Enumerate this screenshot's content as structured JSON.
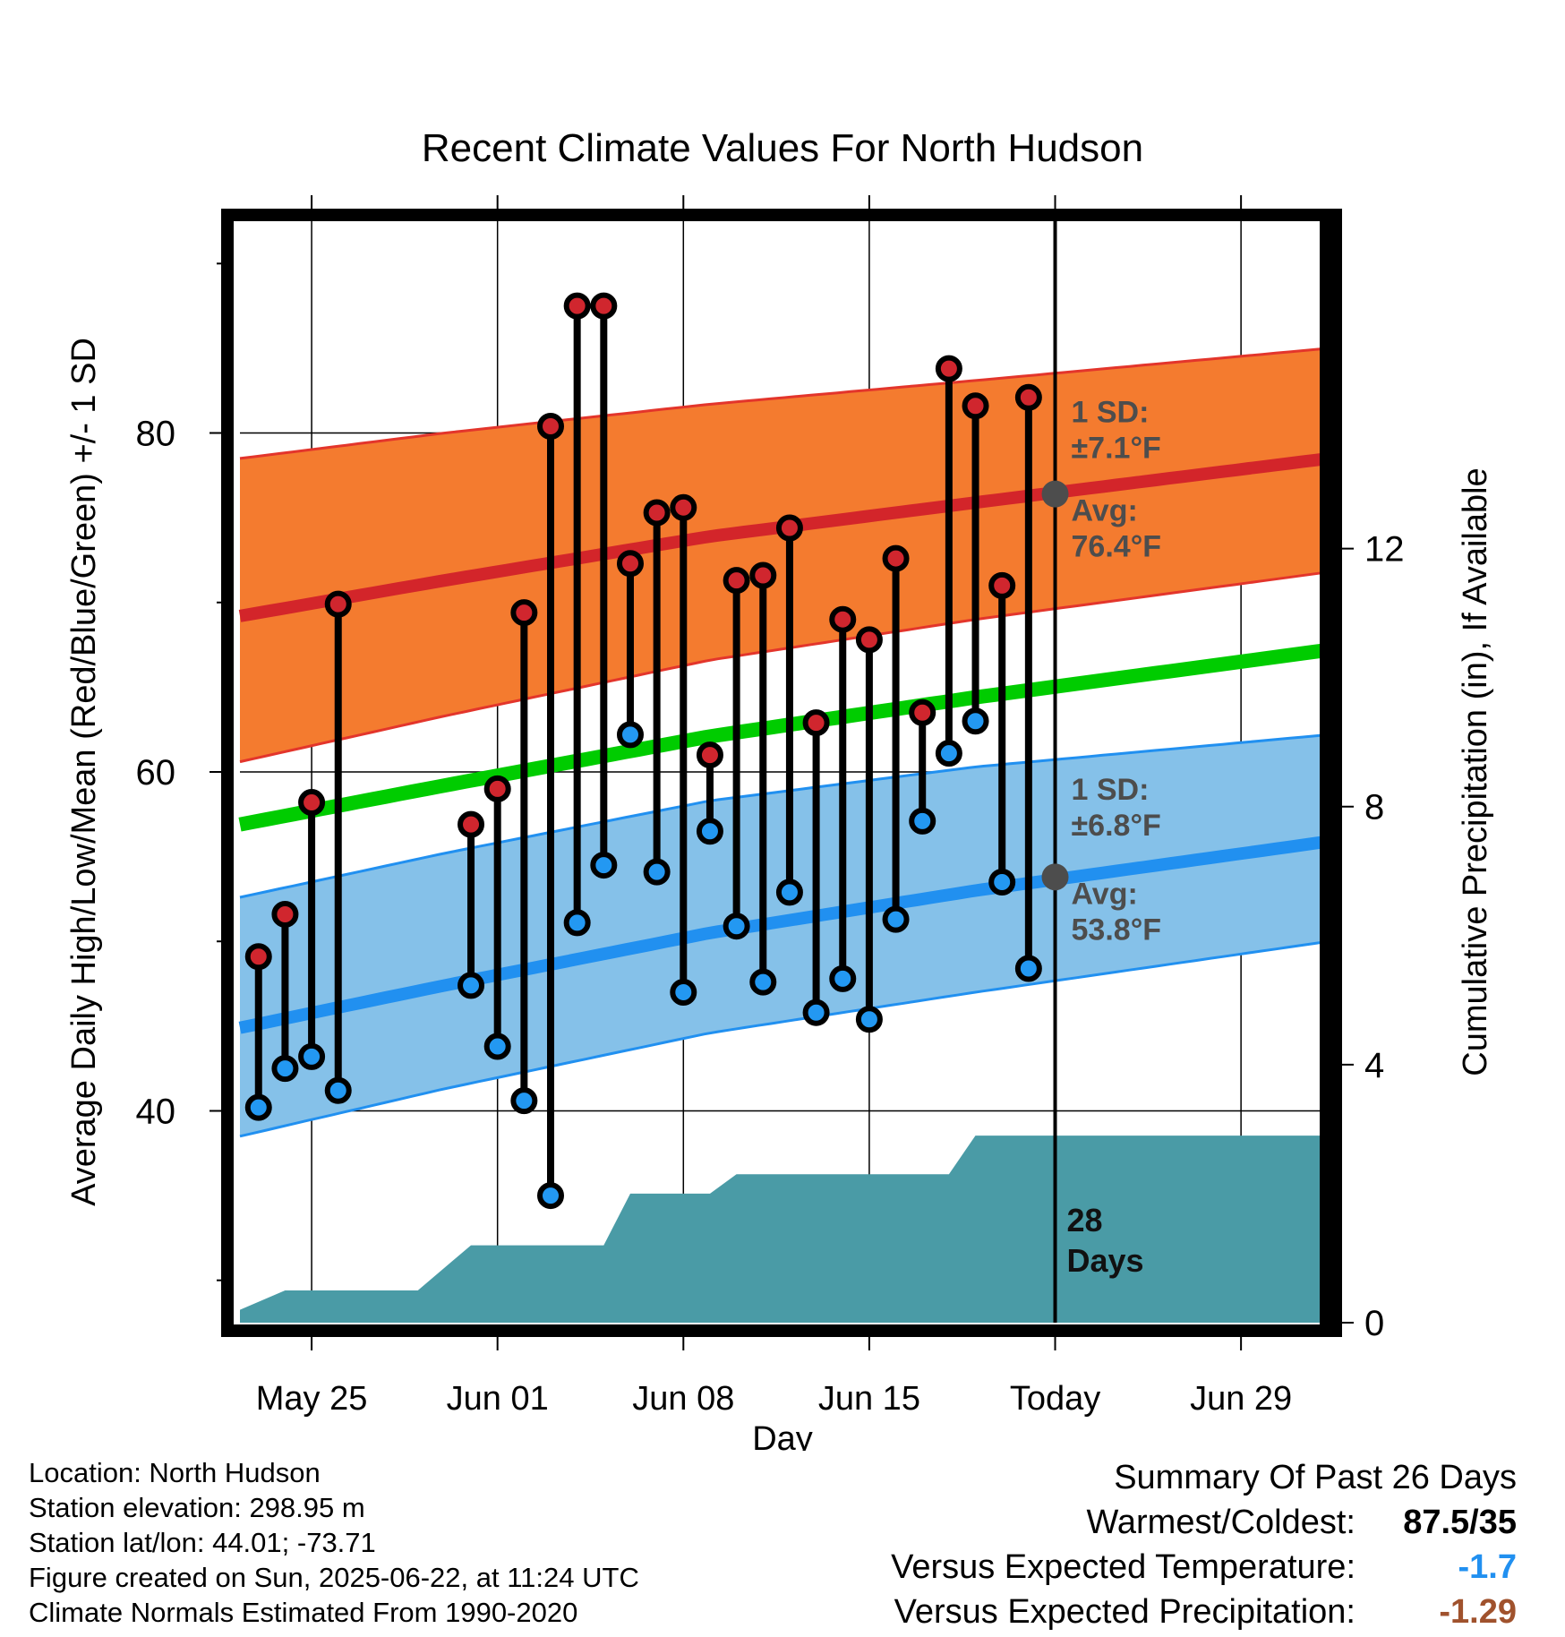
{
  "chart_data": {
    "type": "line",
    "title": "Recent Climate Values For North Hudson",
    "xlabel": "Day",
    "ylabel_left": "Average Daily High/Low/Mean (Red/Blue/Green) +/- 1 SD",
    "ylabel_right": "Cumulative Precipitation (in), If Available",
    "x_ticks": [
      {
        "day": 25,
        "label": "May 25"
      },
      {
        "day": 32,
        "label": "Jun 01"
      },
      {
        "day": 39,
        "label": "Jun 08"
      },
      {
        "day": 46,
        "label": "Jun 15"
      },
      {
        "day": 53,
        "label": "Today"
      },
      {
        "day": 60,
        "label": "Jun 29"
      }
    ],
    "x_range": [
      22.3,
      63.3
    ],
    "y_left_range": [
      27.5,
      92.5
    ],
    "y_left_ticks": [
      40,
      60,
      80
    ],
    "y_left_minor_ticks": [
      30,
      50,
      70,
      90
    ],
    "y_right_ticks": [
      0,
      4,
      8,
      12
    ],
    "y_right_per_degree": 0.2627,
    "today_day": 53,
    "normals": {
      "days": [
        22.3,
        30,
        40,
        50,
        63.3
      ],
      "high_mean": [
        69.2,
        71.3,
        73.9,
        75.9,
        78.5
      ],
      "high_plus_sd": [
        78.5,
        80.0,
        81.7,
        83.1,
        85.0
      ],
      "high_minus_sd": [
        60.6,
        63.3,
        66.6,
        69.0,
        71.8
      ],
      "mean": [
        56.9,
        59.2,
        62.1,
        64.4,
        67.2
      ],
      "low_mean": [
        44.9,
        47.4,
        50.5,
        53.0,
        55.9
      ],
      "low_plus_sd": [
        52.6,
        55.2,
        58.3,
        60.3,
        62.2
      ],
      "low_minus_sd": [
        38.5,
        41.3,
        44.6,
        47.0,
        50.0
      ]
    },
    "daily": [
      {
        "day": 23,
        "high": 49.1,
        "low": 40.2
      },
      {
        "day": 24,
        "high": 51.6,
        "low": 42.5
      },
      {
        "day": 25,
        "high": 58.2,
        "low": 43.2
      },
      {
        "day": 26,
        "high": 69.9,
        "low": 41.2
      },
      {
        "day": 31,
        "high": 56.9,
        "low": 47.4
      },
      {
        "day": 32,
        "high": 59.0,
        "low": 43.8
      },
      {
        "day": 33,
        "high": 69.4,
        "low": 40.6
      },
      {
        "day": 34,
        "high": 80.4,
        "low": 35.0
      },
      {
        "day": 35,
        "high": 87.5,
        "low": 51.1
      },
      {
        "day": 36,
        "high": 87.5,
        "low": 54.5
      },
      {
        "day": 37,
        "high": 72.3,
        "low": 62.2
      },
      {
        "day": 38,
        "high": 75.3,
        "low": 54.1
      },
      {
        "day": 39,
        "high": 75.6,
        "low": 47.0
      },
      {
        "day": 40,
        "high": 61.0,
        "low": 56.5
      },
      {
        "day": 41,
        "high": 71.3,
        "low": 50.9
      },
      {
        "day": 42,
        "high": 71.6,
        "low": 47.6
      },
      {
        "day": 43,
        "high": 74.4,
        "low": 52.9
      },
      {
        "day": 44,
        "high": 62.9,
        "low": 45.8
      },
      {
        "day": 45,
        "high": 69.0,
        "low": 47.8
      },
      {
        "day": 46,
        "high": 67.8,
        "low": 45.4
      },
      {
        "day": 47,
        "high": 72.6,
        "low": 51.3
      },
      {
        "day": 48,
        "high": 63.5,
        "low": 57.1
      },
      {
        "day": 49,
        "high": 83.8,
        "low": 61.1
      },
      {
        "day": 50,
        "high": 81.6,
        "low": 63.0
      },
      {
        "day": 51,
        "high": 71.0,
        "low": 53.5
      },
      {
        "day": 52,
        "high": 82.1,
        "low": 48.4
      }
    ],
    "precip_cumulative": {
      "days": [
        22.3,
        24.0,
        29.0,
        31.0,
        32.0,
        35.0,
        36.0,
        37.0,
        39.0,
        40.0,
        41.0,
        49.0,
        50.0,
        63.3
      ],
      "values": [
        0.2,
        0.5,
        0.5,
        1.2,
        1.2,
        1.2,
        1.2,
        2.0,
        2.0,
        2.0,
        2.3,
        2.3,
        2.9,
        2.9
      ]
    },
    "annotations": {
      "high_sd_title": "1 SD:",
      "high_sd_value": "±7.1°F",
      "high_avg_title": "Avg:",
      "high_avg_value": "76.4°F",
      "low_sd_title": "1 SD:",
      "low_sd_value": "±6.8°F",
      "low_avg_title": "Avg:",
      "low_avg_value": "53.8°F",
      "today_high_avg": 76.4,
      "today_low_avg": 53.8,
      "days_number": "28",
      "days_word": "Days"
    },
    "colors": {
      "high_band": "#f47b2f",
      "high_line": "#d3252a",
      "high_band_edge": "#e3352b",
      "low_band": "#85c1e9",
      "low_line": "#2190f0",
      "mean_line": "#00cc00",
      "precip": "#4a9ba6",
      "high_point": "#d0262e",
      "low_point": "#2398f2",
      "annotation": "#4d4d4d"
    }
  },
  "footer": {
    "location": "Location: North Hudson",
    "elevation": "Station elevation: 298.95 m",
    "latlon": "Station lat/lon: 44.01; -73.71",
    "created": "Figure created on Sun, 2025-06-22, at 11:24 UTC",
    "normals": "Climate Normals Estimated From 1990-2020"
  },
  "summary": {
    "heading": "Summary Of Past 26 Days",
    "warm_cold_label": "Warmest/Coldest:",
    "warm_cold_value": "87.5/35",
    "temp_label": "Versus Expected Temperature:",
    "temp_value": "-1.7",
    "temp_color": "#2190f0",
    "precip_label": "Versus Expected Precipitation:",
    "precip_value": "-1.29",
    "precip_color": "#a0522d"
  }
}
